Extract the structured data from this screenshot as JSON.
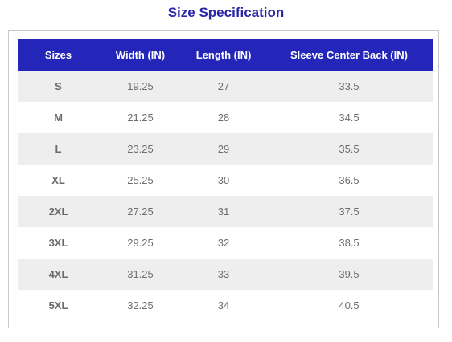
{
  "title": "Size Specification",
  "table": {
    "headers": [
      "Sizes",
      "Width (IN)",
      "Length (IN)",
      "Sleeve Center Back (IN)"
    ],
    "rows": [
      [
        "S",
        "19.25",
        "27",
        "33.5"
      ],
      [
        "M",
        "21.25",
        "28",
        "34.5"
      ],
      [
        "L",
        "23.25",
        "29",
        "35.5"
      ],
      [
        "XL",
        "25.25",
        "30",
        "36.5"
      ],
      [
        "2XL",
        "27.25",
        "31",
        "37.5"
      ],
      [
        "3XL",
        "29.25",
        "32",
        "38.5"
      ],
      [
        "4XL",
        "31.25",
        "33",
        "39.5"
      ],
      [
        "5XL",
        "32.25",
        "34",
        "40.5"
      ]
    ]
  },
  "colors": {
    "title": "#2a26a8",
    "header_background": "#2326b8",
    "header_text": "#ffffff",
    "row_stripe": "#eeeeee",
    "cell_text": "#6e6e6e"
  }
}
